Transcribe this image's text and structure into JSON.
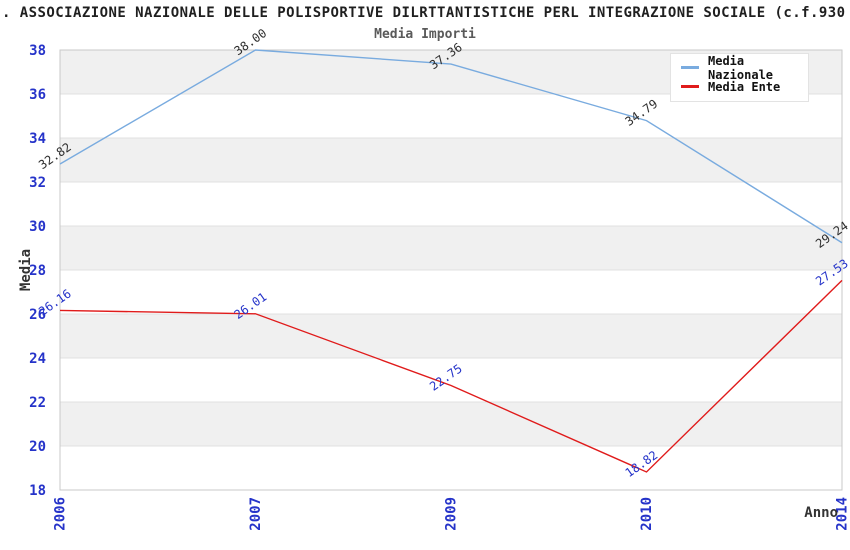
{
  "header": {
    "title": ". ASSOCIAZIONE NAZIONALE DELLE POLISPORTIVE DILRTTANTISTICHE PERL INTEGRAZIONE SOCIALE (c.f.930"
  },
  "chart_data": {
    "type": "line",
    "title": "Media Importi",
    "categories": [
      "2006",
      "2007",
      "2009",
      "2010",
      "2014"
    ],
    "series": [
      {
        "name": "Media Nazionale",
        "color": "#79abdf",
        "label_color": "#2e2e2e",
        "values": [
          32.82,
          38.0,
          37.36,
          34.79,
          29.24
        ],
        "point_labels": [
          "32.82",
          "38.00",
          "37.36",
          "34.79",
          "29.24"
        ]
      },
      {
        "name": "Media Ente",
        "color": "#e01b1b",
        "label_color": "#2533c9",
        "values": [
          26.16,
          26.01,
          22.75,
          18.82,
          27.53
        ],
        "point_labels": [
          "26.16",
          "26.01",
          "22.75",
          "18.82",
          "27.53"
        ]
      }
    ],
    "xlabel": "Anno",
    "ylabel": "Media",
    "ylim": [
      18,
      38
    ],
    "ytick_step": 2,
    "yticks": [
      18,
      20,
      22,
      24,
      26,
      28,
      30,
      32,
      34,
      36,
      38
    ],
    "grid": true,
    "legend_position": "top-right",
    "band_colors": [
      "#f0f0f0",
      "#ffffff"
    ],
    "gridline_color": "#e0e0e0",
    "plot_border_color": "#c9c9c9",
    "tick_color": "#2533c9"
  }
}
